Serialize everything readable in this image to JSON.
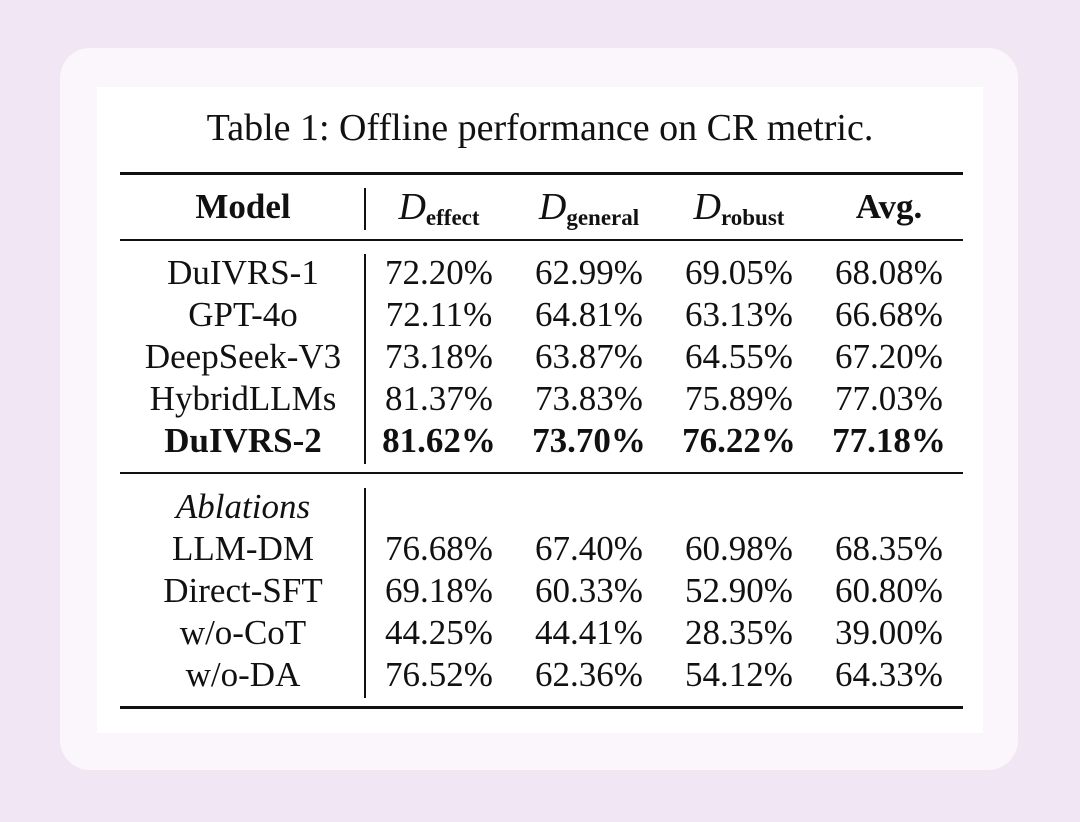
{
  "caption": "Table 1: Offline performance on CR metric.",
  "header": {
    "model": "Model",
    "d_letter": "D",
    "effect_sub": "effect",
    "general_sub": "general",
    "robust_sub": "robust",
    "avg": "Avg."
  },
  "main_rows": [
    {
      "model": "DuIVRS-1",
      "effect": "72.20%",
      "general": "62.99%",
      "robust": "69.05%",
      "avg": "68.08%"
    },
    {
      "model": "GPT-4o",
      "effect": "72.11%",
      "general": "64.81%",
      "robust": "63.13%",
      "avg": "66.68%"
    },
    {
      "model": "DeepSeek-V3",
      "effect": "73.18%",
      "general": "63.87%",
      "robust": "64.55%",
      "avg": "67.20%"
    },
    {
      "model": "HybridLLMs",
      "effect": "81.37%",
      "general": "73.83%",
      "robust": "75.89%",
      "avg": "77.03%"
    },
    {
      "model": "DuIVRS-2",
      "effect": "81.62%",
      "general": "73.70%",
      "robust": "76.22%",
      "avg": "77.18%"
    }
  ],
  "ablations_label": "Ablations",
  "ablation_rows": [
    {
      "model": "LLM-DM",
      "effect": "76.68%",
      "general": "67.40%",
      "robust": "60.98%",
      "avg": "68.35%"
    },
    {
      "model": "Direct-SFT",
      "effect": "69.18%",
      "general": "60.33%",
      "robust": "52.90%",
      "avg": "60.80%"
    },
    {
      "model": "w/o-CoT",
      "effect": "44.25%",
      "general": "44.41%",
      "robust": "28.35%",
      "avg": "39.00%"
    },
    {
      "model": "w/o-DA",
      "effect": "76.52%",
      "general": "62.36%",
      "robust": "54.12%",
      "avg": "64.33%"
    }
  ]
}
